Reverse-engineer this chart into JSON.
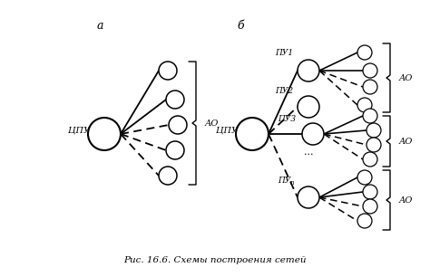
{
  "fig_width": 4.74,
  "fig_height": 3.06,
  "dpi": 100,
  "bg_color": "#ffffff",
  "caption": "Рис. 16.6. Схемы построения сетей",
  "label_a": "а",
  "label_b": "б",
  "label_AO": "АО",
  "label_CPU": "ЦПУ",
  "label_PU1": "ПУ1",
  "label_PU2": "ПУ2",
  "label_PU3": "ПУ3",
  "label_PUn": "ПУn"
}
